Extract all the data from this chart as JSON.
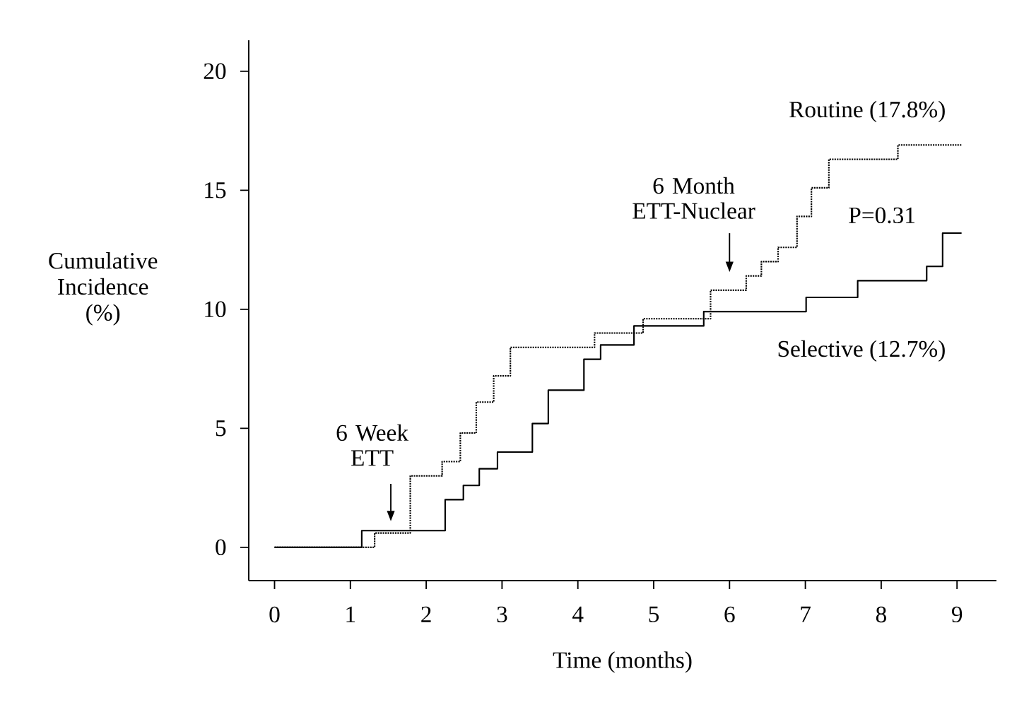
{
  "chart_data": {
    "type": "step",
    "xlabel": "Time (months)",
    "ylabel": "Cumulative Incidence (%)",
    "xlim": [
      -0.34,
      9.52
    ],
    "ylim": [
      -1.4,
      21.3
    ],
    "xticks": [
      0,
      1,
      2,
      3,
      4,
      5,
      6,
      7,
      8,
      9
    ],
    "yticks": [
      0,
      5,
      10,
      15,
      20
    ],
    "series": [
      {
        "name": "Routine (17.8%)",
        "color": "#000000",
        "line_style": "dotted",
        "x": [
          0,
          1.32,
          1.79,
          2.21,
          2.45,
          2.66,
          2.89,
          3.11,
          4.22,
          4.86,
          5.75,
          6.22,
          6.42,
          6.64,
          6.89,
          7.08,
          7.31,
          8.22,
          9.06
        ],
        "values": [
          0,
          0.6,
          3.0,
          3.6,
          4.8,
          6.1,
          7.2,
          8.4,
          9.0,
          9.6,
          10.8,
          11.4,
          12.0,
          12.6,
          13.9,
          15.1,
          16.3,
          16.9,
          16.9
        ]
      },
      {
        "name": "Selective (12.7%)",
        "color": "#000000",
        "line_style": "solid",
        "x": [
          0,
          1.15,
          2.25,
          2.49,
          2.7,
          2.94,
          3.4,
          3.61,
          4.08,
          4.3,
          4.74,
          5.66,
          7.01,
          7.69,
          8.6,
          8.81,
          9.06
        ],
        "values": [
          0,
          0.7,
          2.0,
          2.6,
          3.3,
          4.0,
          5.2,
          6.6,
          7.9,
          8.5,
          9.3,
          9.9,
          10.5,
          11.2,
          11.8,
          13.2,
          13.2
        ]
      }
    ],
    "annotations": [
      "6 Week ETT",
      "6 Month ETT-Nuclear",
      "P=0.31"
    ]
  }
}
